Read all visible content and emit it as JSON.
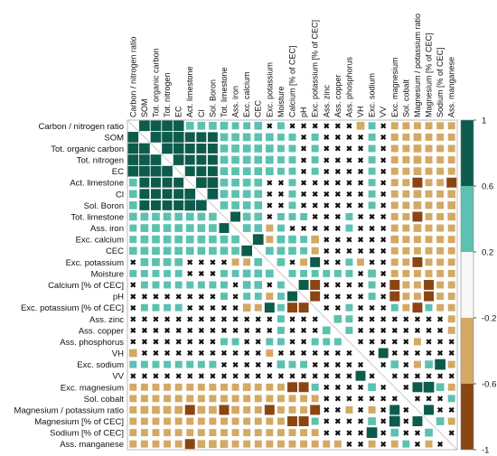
{
  "chart_data": {
    "type": "heatmap",
    "labels": [
      "Carbon / nitrogen ratio",
      "SOM",
      "Tot. organic carbon",
      "Tot. nitrogen",
      "EC",
      "Act. limestone",
      "Cl",
      "Sol. Boron",
      "Tot. limestone",
      "Ass. iron",
      "Exc. calcium",
      "CEC",
      "Exc. potassium",
      "Moisture",
      "Calcium [% of CEC]",
      "pH",
      "Exc. potassium [% of CEC]",
      "Ass. zinc",
      "Ass. copper",
      "Ass. phosphorus",
      "VH",
      "Exc. sodium",
      "VV",
      "Exc. magnesium",
      "Sol. cobalt",
      "Magnesium / potassium ratio",
      "Magnesium [% of CEC]",
      "Sodium [% of CEC]",
      "Ass. manganese"
    ],
    "matrix": [
      [
        1,
        0.8,
        0.8,
        0.8,
        0.8,
        0.4,
        0.4,
        0.4,
        0.4,
        0.3,
        0.3,
        0.4,
        0.0,
        0.3,
        0.0,
        0.0,
        0.0,
        0.0,
        0.0,
        0.0,
        -0.4,
        0.3,
        0.0,
        -0.3,
        -0.3,
        -0.3,
        -0.3,
        -0.3,
        -0.3
      ],
      [
        0.8,
        1,
        0.8,
        0.8,
        0.8,
        0.7,
        0.7,
        0.7,
        0.4,
        0.4,
        0.4,
        0.4,
        0.4,
        0.3,
        0.3,
        0.0,
        0.3,
        0.0,
        0.0,
        0.0,
        0.0,
        0.3,
        0.0,
        -0.3,
        -0.3,
        -0.4,
        -0.3,
        -0.3,
        -0.3
      ],
      [
        0.8,
        0.8,
        1,
        0.8,
        0.8,
        0.7,
        0.7,
        0.7,
        0.4,
        0.4,
        0.4,
        0.4,
        0.4,
        0.3,
        0.3,
        0.0,
        0.3,
        0.0,
        0.0,
        0.0,
        0.0,
        0.3,
        0.0,
        -0.3,
        -0.3,
        -0.4,
        -0.3,
        -0.3,
        -0.3
      ],
      [
        0.8,
        0.8,
        0.8,
        1,
        0.8,
        0.7,
        0.7,
        0.7,
        0.4,
        0.4,
        0.4,
        0.4,
        0.4,
        0.3,
        0.3,
        0.0,
        0.3,
        0.0,
        0.0,
        0.0,
        0.0,
        0.3,
        0.0,
        -0.3,
        -0.3,
        -0.4,
        -0.3,
        -0.3,
        -0.3
      ],
      [
        0.8,
        0.8,
        0.8,
        0.8,
        1,
        0.7,
        0.7,
        0.7,
        0.4,
        0.4,
        0.4,
        0.4,
        0.4,
        0.3,
        0.3,
        0.0,
        0.3,
        0.0,
        0.0,
        0.0,
        0.0,
        0.3,
        0.0,
        -0.3,
        -0.3,
        -0.4,
        -0.3,
        -0.3,
        -0.3
      ],
      [
        0.4,
        0.7,
        0.7,
        0.7,
        0.7,
        1,
        0.8,
        0.8,
        0.4,
        0.4,
        0.4,
        0.4,
        0.0,
        0.0,
        0.3,
        0.0,
        0.0,
        0.0,
        0.0,
        0.0,
        0.0,
        0.3,
        0.0,
        -0.3,
        -0.3,
        -0.7,
        -0.3,
        -0.3,
        -0.7
      ],
      [
        0.4,
        0.7,
        0.7,
        0.7,
        0.7,
        0.8,
        1,
        0.8,
        0.4,
        0.4,
        0.4,
        0.4,
        0.0,
        0.0,
        0.3,
        0.0,
        0.0,
        0.0,
        0.0,
        0.0,
        0.0,
        0.3,
        0.0,
        -0.3,
        -0.3,
        -0.4,
        -0.3,
        -0.3,
        -0.4
      ],
      [
        0.4,
        0.7,
        0.7,
        0.7,
        0.7,
        0.8,
        0.8,
        1,
        0.4,
        0.4,
        0.4,
        0.4,
        0.0,
        0.0,
        0.3,
        0.0,
        0.0,
        0.0,
        0.0,
        0.0,
        0.0,
        0.3,
        0.0,
        -0.3,
        -0.3,
        -0.4,
        -0.3,
        -0.3,
        -0.4
      ],
      [
        0.4,
        0.4,
        0.4,
        0.4,
        0.4,
        0.4,
        0.4,
        0.4,
        1,
        0.7,
        0.4,
        0.4,
        0.0,
        0.3,
        0.3,
        0.3,
        0.0,
        0.0,
        0.0,
        0.3,
        0.0,
        0.0,
        0.0,
        -0.3,
        -0.3,
        -0.7,
        -0.3,
        -0.3,
        -0.4
      ],
      [
        0.3,
        0.4,
        0.4,
        0.4,
        0.4,
        0.4,
        0.4,
        0.4,
        0.7,
        1,
        0.4,
        0.4,
        -0.3,
        0.3,
        0.0,
        0.0,
        0.0,
        0.0,
        0.0,
        0.3,
        0.0,
        0.0,
        0.0,
        -0.3,
        -0.3,
        -0.4,
        -0.3,
        -0.3,
        -0.3
      ],
      [
        0.3,
        0.4,
        0.4,
        0.4,
        0.4,
        0.4,
        0.4,
        0.4,
        0.4,
        0.4,
        1,
        0.8,
        -0.3,
        0.4,
        0.4,
        0.3,
        -0.4,
        0.0,
        0.0,
        0.0,
        0.0,
        0.0,
        0.0,
        -0.4,
        -0.3,
        -0.3,
        -0.3,
        -0.3,
        -0.3
      ],
      [
        0.4,
        0.4,
        0.4,
        0.4,
        0.4,
        0.4,
        0.4,
        0.4,
        0.4,
        0.4,
        0.8,
        1,
        0.4,
        0.4,
        0.4,
        0.3,
        -0.3,
        0.0,
        0.0,
        0.0,
        0.0,
        0.0,
        0.0,
        -0.3,
        -0.3,
        -0.3,
        -0.3,
        -0.3,
        -0.3
      ],
      [
        0.0,
        0.4,
        0.4,
        0.4,
        0.4,
        0.0,
        0.0,
        0.0,
        0.0,
        -0.3,
        -0.3,
        0.4,
        1,
        0.4,
        0.0,
        -0.3,
        0.7,
        0.0,
        0.0,
        0.3,
        -0.3,
        0.0,
        0.0,
        -0.3,
        -0.3,
        -0.7,
        -0.3,
        -0.3,
        -0.3
      ],
      [
        0.3,
        0.3,
        0.3,
        0.3,
        0.3,
        0.0,
        0.0,
        0.0,
        0.3,
        0.3,
        0.4,
        0.4,
        0.4,
        1,
        0.3,
        0.3,
        0.3,
        0.3,
        0.3,
        0.3,
        0.0,
        0.4,
        0.0,
        -0.3,
        -0.3,
        -0.3,
        -0.3,
        -0.3,
        -0.3
      ],
      [
        0.0,
        0.3,
        0.3,
        0.3,
        0.3,
        0.3,
        0.3,
        0.3,
        0.3,
        0.0,
        0.4,
        0.4,
        0.0,
        0.3,
        1,
        0.7,
        -0.7,
        0.0,
        0.0,
        0.0,
        0.0,
        0.3,
        0.0,
        -0.7,
        -0.3,
        -0.3,
        -0.7,
        -0.3,
        -0.3
      ],
      [
        0.0,
        0.0,
        0.0,
        0.0,
        0.0,
        0.0,
        0.0,
        0.0,
        0.3,
        0.0,
        0.3,
        0.3,
        -0.3,
        0.3,
        0.7,
        1,
        -0.7,
        0.0,
        0.0,
        0.0,
        0.0,
        0.3,
        0.0,
        -0.7,
        -0.3,
        -0.3,
        -0.7,
        -0.3,
        -0.3
      ],
      [
        0.0,
        0.3,
        0.3,
        0.3,
        0.3,
        0.0,
        0.0,
        0.0,
        0.0,
        0.0,
        -0.4,
        -0.3,
        0.7,
        0.3,
        -0.7,
        -0.7,
        1,
        0.0,
        0.0,
        0.3,
        0.0,
        0.0,
        0.0,
        0.3,
        -0.3,
        -0.7,
        0.3,
        -0.3,
        -0.3
      ],
      [
        0.0,
        0.0,
        0.0,
        0.0,
        0.0,
        0.0,
        0.0,
        0.0,
        0.0,
        0.0,
        0.0,
        0.0,
        0.0,
        0.3,
        0.0,
        0.0,
        0.0,
        1,
        0.4,
        0.3,
        0.0,
        0.0,
        0.0,
        0.0,
        0.0,
        0.0,
        0.0,
        0.0,
        -0.3
      ],
      [
        0.0,
        0.0,
        0.0,
        0.0,
        0.0,
        0.0,
        0.0,
        0.0,
        0.0,
        0.0,
        0.0,
        0.0,
        0.0,
        0.3,
        0.0,
        0.0,
        0.0,
        0.4,
        1,
        0.3,
        0.0,
        0.0,
        0.0,
        0.0,
        0.0,
        0.0,
        0.0,
        0.0,
        -0.3
      ],
      [
        0.0,
        0.0,
        0.0,
        0.0,
        0.0,
        0.0,
        0.0,
        0.0,
        0.3,
        0.3,
        0.0,
        0.0,
        0.3,
        0.3,
        0.0,
        0.0,
        0.3,
        0.3,
        0.3,
        1,
        0.0,
        0.0,
        0.0,
        0.0,
        0.0,
        -0.3,
        0.0,
        0.0,
        0.0
      ],
      [
        -0.4,
        0.0,
        0.0,
        0.0,
        0.0,
        0.0,
        0.0,
        0.0,
        0.0,
        0.0,
        0.0,
        0.0,
        -0.3,
        0.0,
        0.0,
        0.0,
        0.0,
        0.0,
        0.0,
        0.0,
        1,
        0.0,
        0.7,
        0.0,
        0.0,
        0.0,
        0.0,
        0.0,
        0.0
      ],
      [
        0.3,
        0.3,
        0.3,
        0.3,
        0.3,
        0.3,
        0.3,
        0.3,
        0.0,
        0.0,
        0.0,
        0.0,
        0.0,
        0.4,
        0.3,
        0.3,
        0.0,
        0.0,
        0.0,
        0.0,
        0.0,
        1,
        0.0,
        0.4,
        0.0,
        -0.3,
        0.4,
        0.8,
        -0.3
      ],
      [
        0.0,
        0.0,
        0.0,
        0.0,
        0.0,
        0.0,
        0.0,
        0.0,
        0.0,
        0.0,
        0.0,
        0.0,
        0.0,
        0.0,
        0.0,
        0.0,
        0.0,
        0.0,
        0.0,
        0.0,
        0.7,
        0.0,
        1,
        0.0,
        0.0,
        0.0,
        0.0,
        0.0,
        0.0
      ],
      [
        -0.3,
        -0.3,
        -0.3,
        -0.3,
        -0.3,
        -0.3,
        -0.3,
        -0.3,
        -0.3,
        -0.3,
        -0.4,
        -0.3,
        -0.3,
        -0.3,
        -0.7,
        -0.7,
        0.3,
        0.0,
        0.0,
        0.0,
        0.0,
        0.4,
        0.0,
        1,
        0.0,
        0.7,
        0.8,
        0.4,
        -0.3
      ],
      [
        -0.3,
        -0.3,
        -0.3,
        -0.3,
        -0.3,
        -0.3,
        -0.3,
        -0.3,
        -0.3,
        -0.3,
        -0.3,
        -0.3,
        -0.3,
        -0.3,
        -0.3,
        -0.3,
        -0.3,
        0.0,
        0.0,
        0.0,
        0.0,
        0.0,
        0.0,
        0.0,
        1,
        0.0,
        0.0,
        0.0,
        0.3
      ],
      [
        -0.3,
        -0.4,
        -0.4,
        -0.4,
        -0.4,
        -0.7,
        -0.4,
        -0.4,
        -0.7,
        -0.4,
        -0.3,
        -0.3,
        -0.7,
        -0.3,
        -0.3,
        -0.3,
        -0.7,
        0.0,
        0.0,
        -0.3,
        0.0,
        -0.3,
        0.0,
        0.7,
        0.0,
        1,
        0.7,
        0.0,
        0.0
      ],
      [
        -0.3,
        -0.3,
        -0.3,
        -0.3,
        -0.3,
        -0.3,
        -0.3,
        -0.3,
        -0.3,
        -0.3,
        -0.3,
        -0.3,
        -0.3,
        -0.3,
        -0.7,
        -0.7,
        0.3,
        0.0,
        0.0,
        0.0,
        0.0,
        0.4,
        0.0,
        0.8,
        0.0,
        0.7,
        1,
        0.4,
        -0.3
      ],
      [
        -0.3,
        -0.3,
        -0.3,
        -0.3,
        -0.3,
        -0.3,
        -0.3,
        -0.3,
        -0.3,
        -0.3,
        -0.3,
        -0.3,
        -0.3,
        -0.3,
        -0.3,
        -0.3,
        -0.3,
        0.0,
        0.0,
        0.0,
        0.0,
        0.8,
        0.0,
        0.4,
        0.0,
        0.0,
        0.4,
        1,
        0.0
      ],
      [
        -0.3,
        -0.3,
        -0.3,
        -0.3,
        -0.3,
        -0.7,
        -0.4,
        -0.4,
        -0.4,
        -0.3,
        -0.3,
        -0.3,
        -0.3,
        -0.3,
        -0.3,
        -0.3,
        -0.3,
        -0.3,
        -0.3,
        0.0,
        0.0,
        -0.3,
        0.0,
        -0.3,
        0.3,
        0.0,
        -0.3,
        0.0,
        1
      ]
    ],
    "colorbar": {
      "range": [
        -1,
        1
      ],
      "ticks": [
        "1",
        "0.6",
        "0.2",
        "-0.2",
        "-0.6",
        "-1"
      ],
      "bins": [
        {
          "from": 0.6,
          "to": 1,
          "color": "#0d5b4c"
        },
        {
          "from": 0.2,
          "to": 0.6,
          "color": "#5cc1b0"
        },
        {
          "from": -0.2,
          "to": 0.2,
          "color": "#f7f7f7"
        },
        {
          "from": -0.6,
          "to": -0.2,
          "color": "#d3a964"
        },
        {
          "from": -1,
          "to": -0.6,
          "color": "#8b4513"
        }
      ]
    },
    "insignificant_marker": "✖"
  }
}
